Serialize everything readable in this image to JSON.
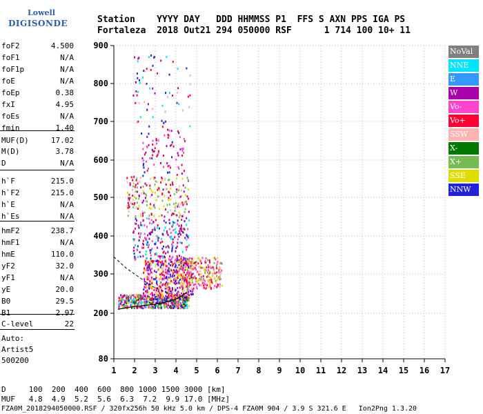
{
  "logo": {
    "line1": "Lowell",
    "line2": "DIGISONDE"
  },
  "header": {
    "line1": "Station    YYYY DAY   DDD HHMMSS P1  FFS S AXN PPS IGA PS",
    "line2": "Fortaleza  2018 Out21 294 050000 RSF      1 714 100 10+ 11"
  },
  "params": [
    {
      "name": "foF2",
      "value": "4.500"
    },
    {
      "name": "foF1",
      "value": "N/A"
    },
    {
      "name": "foF1p",
      "value": "N/A"
    },
    {
      "name": "foE",
      "value": "N/A"
    },
    {
      "name": "foEp",
      "value": "0.38"
    },
    {
      "name": "fxI",
      "value": "4.95"
    },
    {
      "name": "foEs",
      "value": "N/A"
    },
    {
      "name": "fmin",
      "value": "1.40"
    },
    {
      "name": "MUF(D)",
      "value": "17.02"
    },
    {
      "name": "M(D)",
      "value": "3.78"
    },
    {
      "name": "D",
      "value": "N/A"
    },
    {
      "name": "h`F",
      "value": "215.0"
    },
    {
      "name": "h`F2",
      "value": "215.0"
    },
    {
      "name": "h`E",
      "value": "N/A"
    },
    {
      "name": "h`Es",
      "value": "N/A"
    },
    {
      "name": "hmF2",
      "value": "238.7"
    },
    {
      "name": "hmF1",
      "value": "N/A"
    },
    {
      "name": "hmE",
      "value": "110.0"
    },
    {
      "name": "yF2",
      "value": "32.0"
    },
    {
      "name": "yF1",
      "value": "N/A"
    },
    {
      "name": "yE",
      "value": "20.0"
    },
    {
      "name": "B0",
      "value": "29.5"
    },
    {
      "name": "B1",
      "value": "2.97"
    },
    {
      "name": "C-level",
      "value": "22"
    }
  ],
  "autoscale": {
    "line1": "Auto:",
    "line2": "Artist5",
    "line3": "500200"
  },
  "legend": [
    {
      "label": "NoVal",
      "bg": "#808080",
      "fg": "#ffffff"
    },
    {
      "label": "NNE",
      "bg": "#00e5ff",
      "fg": "#ffffff"
    },
    {
      "label": "E",
      "bg": "#3399ff",
      "fg": "#ffffff"
    },
    {
      "label": "W",
      "bg": "#aa00aa",
      "fg": "#ffffff"
    },
    {
      "label": "Vo-",
      "bg": "#ff44cc",
      "fg": "#ffffff"
    },
    {
      "label": "Vo+",
      "bg": "#ff0033",
      "fg": "#ffffff"
    },
    {
      "label": "SSW",
      "bg": "#ffb3b3",
      "fg": "#ffffff"
    },
    {
      "label": "X-",
      "bg": "#007700",
      "fg": "#ffffff"
    },
    {
      "label": "X+",
      "bg": "#77bb55",
      "fg": "#ffffff"
    },
    {
      "label": "SSE",
      "bg": "#dddd00",
      "fg": "#ffffff"
    },
    {
      "label": "NNW",
      "bg": "#2222dd",
      "fg": "#ffffff"
    }
  ],
  "muf_table": {
    "line1": "D     100  200  400  600  800 1000 1500 3000 [km]",
    "line2": "MUF   4.8  4.9  5.2  5.6  6.3  7.2  9.9 17.0 [MHz]"
  },
  "footer": "FZA0M_2018294050000.RSF / 320fx256h 50 kHz 5.0 km / DPS-4 FZA0M 904 / 3.9 S 321.6 E   Ion2Png 1.3.20",
  "chart_data": {
    "type": "scatter",
    "title": "",
    "xlabel": "",
    "ylabel": "",
    "xlim": [
      1,
      17
    ],
    "ylim": [
      80,
      900
    ],
    "x_ticks": [
      1,
      2,
      3,
      4,
      5,
      6,
      7,
      8,
      9,
      10,
      11,
      12,
      13,
      14,
      15,
      16,
      17
    ],
    "y_ticks": [
      80,
      200,
      300,
      400,
      500,
      600,
      700,
      800,
      900
    ],
    "grid": "dotted vertical and horizontal",
    "clusters": [
      {
        "cls": "O-trace low F region",
        "fmin": 1.2,
        "fmax": 4.6,
        "hmin": 215,
        "hmax": 250,
        "n": 520,
        "colors": [
          "#ff0033",
          "#ff44cc",
          "#aa00aa",
          "#00e5ff",
          "#2222dd",
          "#77bb55",
          "#dddd00",
          "#007700"
        ]
      },
      {
        "cls": "F region spread",
        "fmin": 2.4,
        "fmax": 4.8,
        "hmin": 240,
        "hmax": 340,
        "n": 520,
        "colors": [
          "#ff0033",
          "#ff44cc",
          "#aa00aa",
          "#2222dd",
          "#ffb3b3",
          "#dddd00"
        ]
      },
      {
        "cls": "Spread tail",
        "fmin": 4.2,
        "fmax": 6.2,
        "hmin": 265,
        "hmax": 345,
        "n": 260,
        "colors": [
          "#dddd00",
          "#ff0033",
          "#ffb3b3",
          "#77bb55",
          "#ff44cc"
        ]
      },
      {
        "cls": "Mid layer",
        "fmin": 1.9,
        "fmax": 4.6,
        "hmin": 340,
        "hmax": 450,
        "n": 220,
        "colors": [
          "#2222dd",
          "#aa00aa",
          "#ff44cc",
          "#ff0033",
          "#00e5ff"
        ]
      },
      {
        "cls": "Upper layer",
        "fmin": 1.6,
        "fmax": 4.6,
        "hmin": 450,
        "hmax": 560,
        "n": 200,
        "colors": [
          "#ffb3b3",
          "#dddd00",
          "#ff0033",
          "#77bb55",
          "#aa00aa"
        ]
      },
      {
        "cls": "High echoes",
        "fmin": 2.3,
        "fmax": 4.4,
        "hmin": 560,
        "hmax": 680,
        "n": 80,
        "colors": [
          "#ff44cc",
          "#aa00aa",
          "#2222dd",
          "#ff0033"
        ]
      },
      {
        "cls": "Top echoes",
        "fmin": 1.9,
        "fmax": 4.7,
        "hmin": 680,
        "hmax": 880,
        "n": 70,
        "colors": [
          "#2222dd",
          "#00e5ff",
          "#aa00aa",
          "#ffb3b3",
          "#ff0033"
        ]
      }
    ],
    "profile_curve": [
      [
        1.2,
        210
      ],
      [
        1.6,
        214
      ],
      [
        2.0,
        217
      ],
      [
        2.5,
        220
      ],
      [
        3.0,
        223
      ],
      [
        3.5,
        228
      ],
      [
        4.0,
        236
      ],
      [
        4.3,
        245
      ],
      [
        4.5,
        252
      ]
    ],
    "dashed_curve": [
      [
        1.0,
        345
      ],
      [
        1.3,
        330
      ],
      [
        1.6,
        315
      ],
      [
        2.0,
        300
      ],
      [
        2.4,
        285
      ],
      [
        2.8,
        270
      ],
      [
        3.2,
        260
      ],
      [
        3.6,
        252
      ],
      [
        4.0,
        246
      ],
      [
        4.5,
        240
      ]
    ]
  }
}
